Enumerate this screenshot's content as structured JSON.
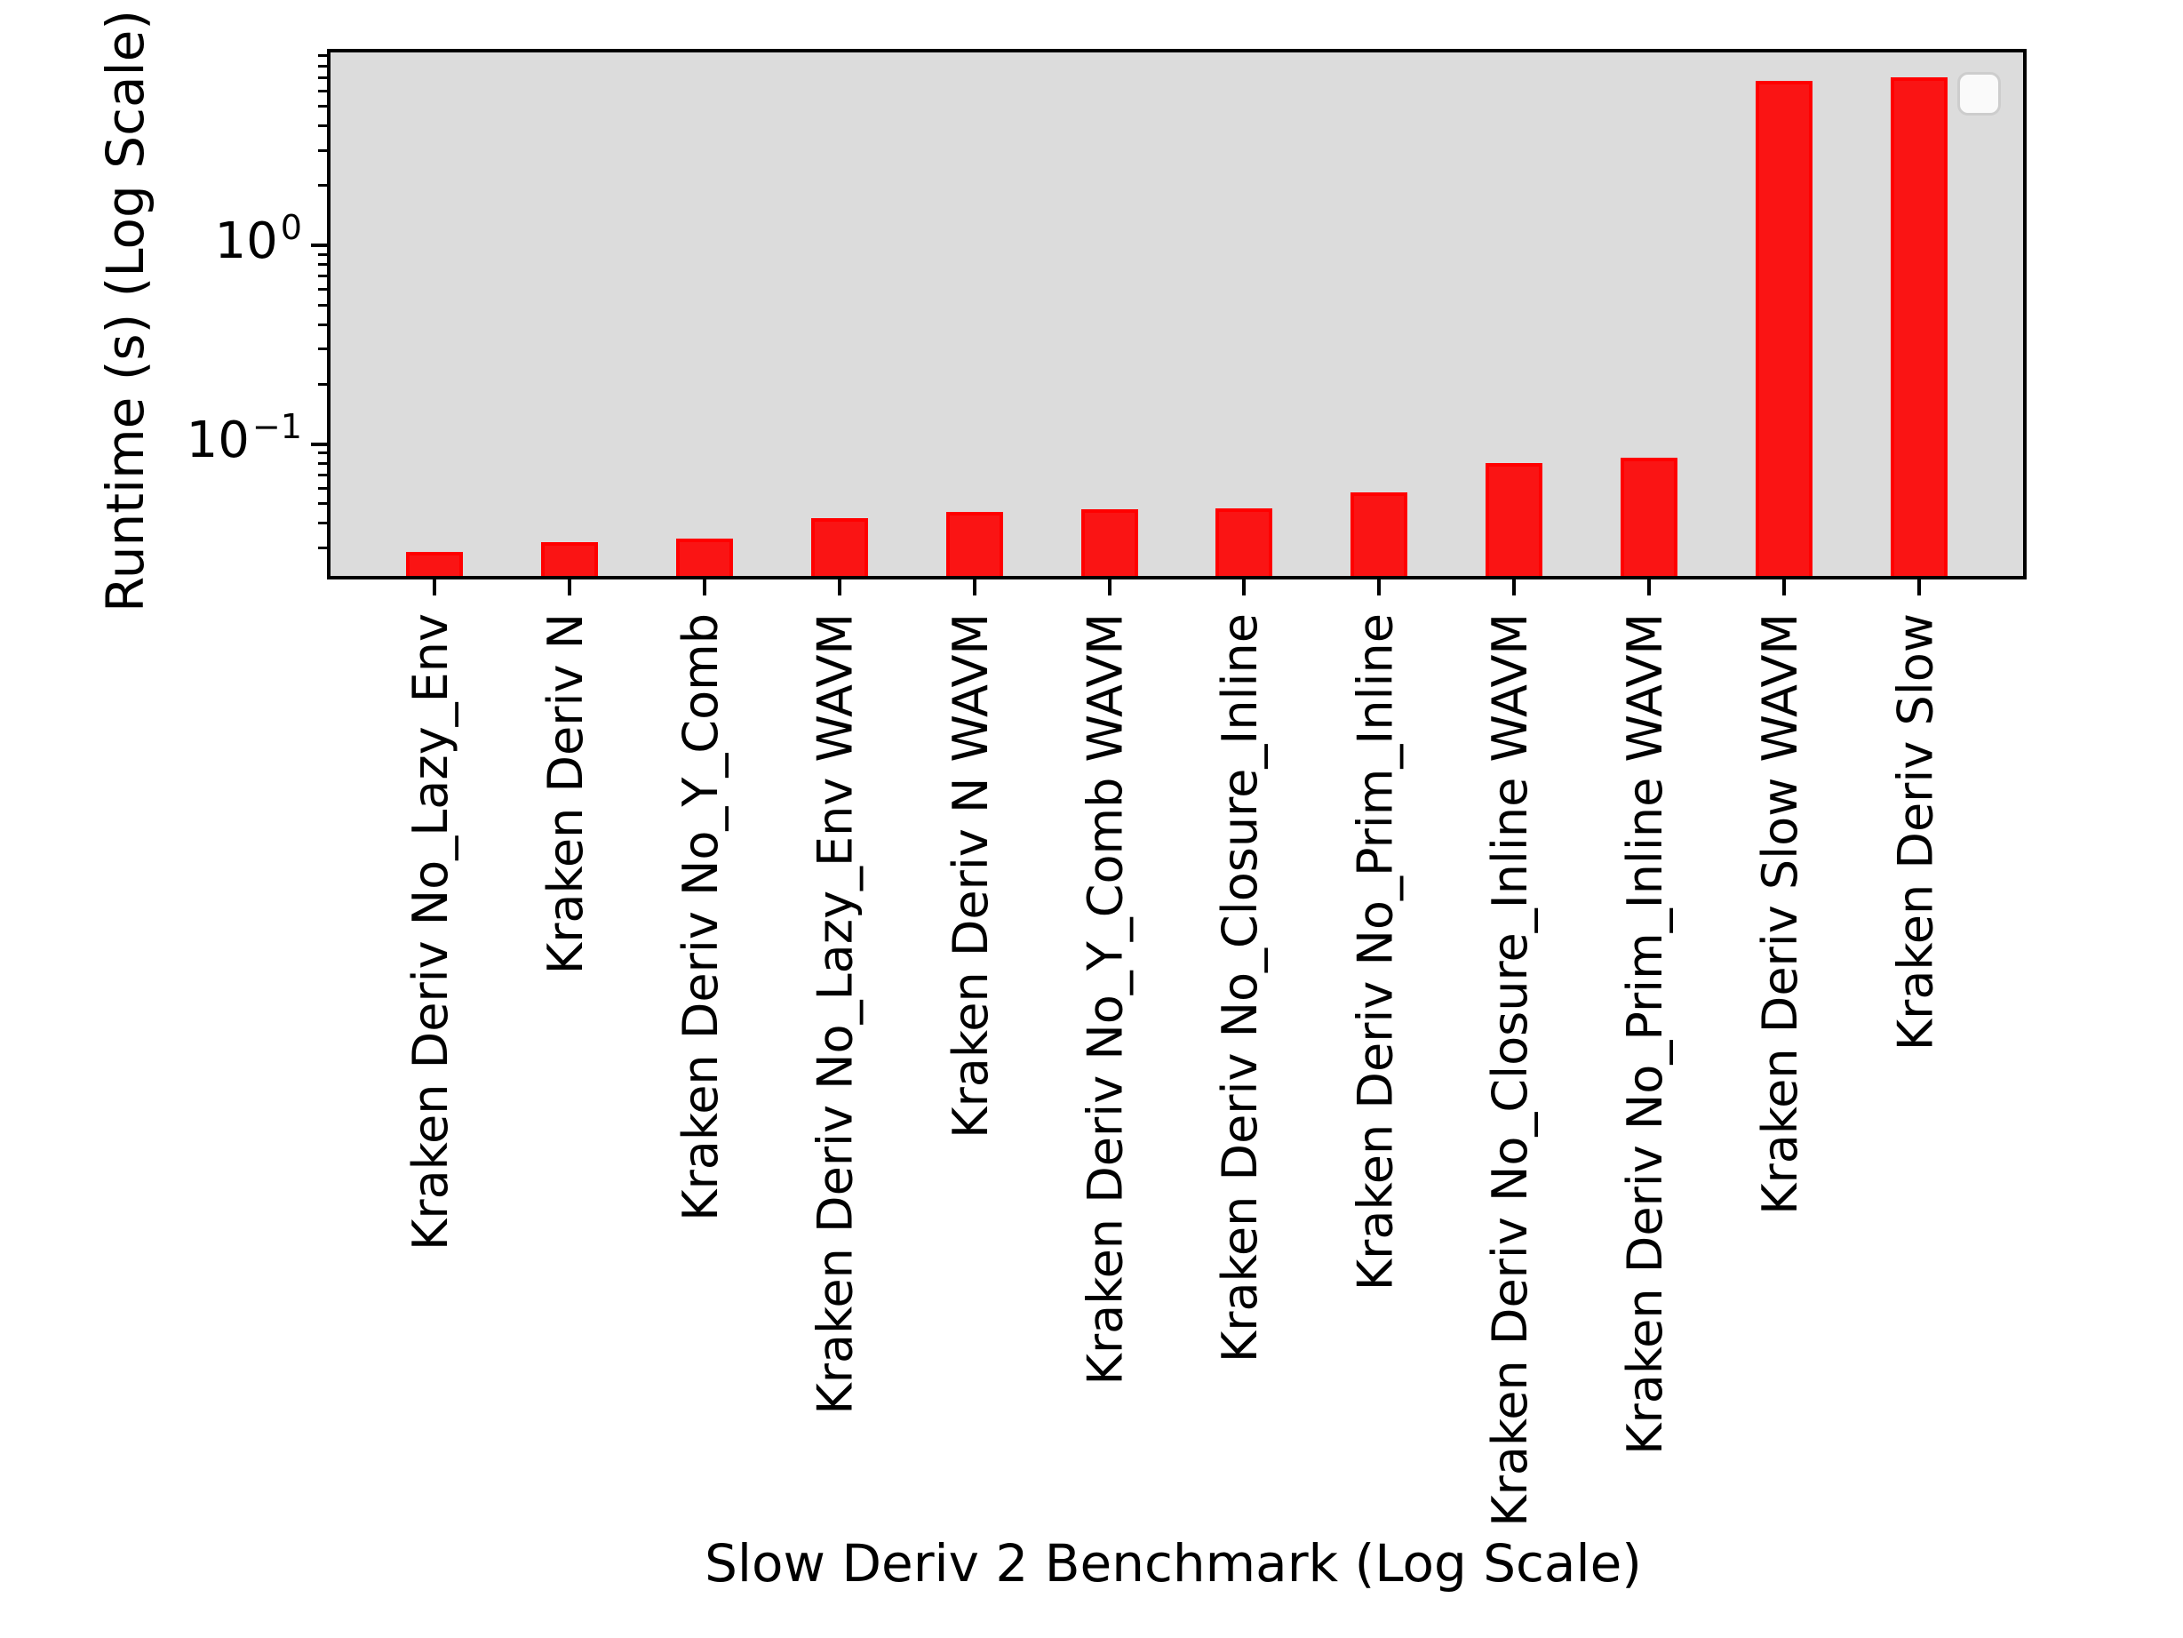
{
  "chart_data": {
    "type": "bar",
    "title": "",
    "xlabel": "Slow Deriv 2 Benchmark (Log Scale)",
    "ylabel": "Runtime (s) (Log Scale)",
    "yscale": "log",
    "ylim": [
      0.0217,
      9.35
    ],
    "grid": false,
    "legend": {
      "visible": true,
      "entries": []
    },
    "categories": [
      "Kraken Deriv No_Lazy_Env",
      "Kraken Deriv N",
      "Kraken Deriv No_Y_Comb",
      "Kraken Deriv No_Lazy_Env WAVM",
      "Kraken Deriv N WAVM",
      "Kraken Deriv No_Y_Comb WAVM",
      "Kraken Deriv No_Closure_Inline",
      "Kraken Deriv No_Prim_Inline",
      "Kraken Deriv No_Closure_Inline WAVM",
      "Kraken Deriv No_Prim_Inline WAVM",
      "Kraken Deriv Slow WAVM",
      "Kraken Deriv Slow"
    ],
    "values": [
      0.0286,
      0.032,
      0.0334,
      0.0423,
      0.0455,
      0.0469,
      0.0474,
      0.057,
      0.0801,
      0.0852,
      6.72,
      7.01
    ],
    "y_major_ticks": [
      {
        "value": 1,
        "base": "10",
        "exp": "0"
      },
      {
        "value": 0.1,
        "base": "10",
        "exp": "−1"
      }
    ],
    "y_minor_ticks": [
      2,
      3,
      4,
      5,
      6,
      7,
      8,
      9,
      0.2,
      0.3,
      0.4,
      0.5,
      0.6,
      0.7,
      0.8,
      0.9,
      0.03,
      0.04,
      0.05,
      0.06,
      0.07,
      0.08,
      0.09
    ],
    "colors": {
      "bar_fill": "#fa1414",
      "bar_edge": "#ff0000",
      "plot_background": "#dcdcdc",
      "spine": "#000000",
      "figure_background": "#ffffff"
    }
  }
}
